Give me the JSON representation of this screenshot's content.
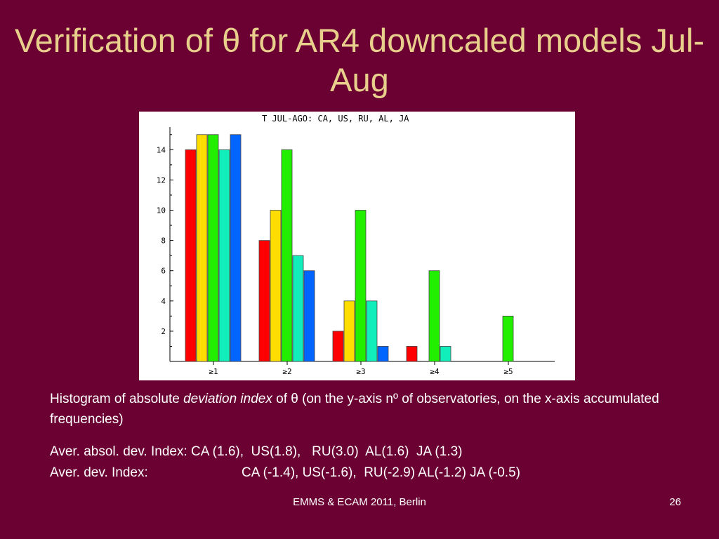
{
  "slide": {
    "title": "Verification of θ for AR4 downcaled models Jul-Aug",
    "caption": {
      "part1": "Histogram of absolute ",
      "italic": "deviation index",
      "part2": " of θ (on the y-axis nº of observatories, on the x-axis accumulated frequencies)"
    },
    "stats": {
      "abs_label": "Aver. absol. dev. Index: ",
      "abs_values": "CA (1.6),  US(1.8),   RU(3.0)  AL(1.6)  JA (1.3)",
      "dev_label": "Aver. dev. Index:",
      "dev_values": "CA (-1.4), US(-1.6),  RU(-2.9) AL(-1.2) JA (-0.5)"
    },
    "footer": "EMMS & ECAM 2011, Berlin",
    "page_number": "26"
  },
  "chart_data": {
    "type": "bar",
    "title": "T JUL-AGO: CA, US, RU, AL, JA",
    "categories": [
      "≥1",
      "≥2",
      "≥3",
      "≥4",
      "≥5"
    ],
    "series": [
      {
        "name": "CA",
        "color": "#ff0000",
        "values": [
          14,
          8,
          2,
          1,
          0
        ]
      },
      {
        "name": "US",
        "color": "#ffdd00",
        "values": [
          15,
          10,
          4,
          0,
          0
        ]
      },
      {
        "name": "RU",
        "color": "#22ee00",
        "values": [
          15,
          14,
          10,
          6,
          3
        ]
      },
      {
        "name": "AL",
        "color": "#11eebb",
        "values": [
          14,
          7,
          4,
          1,
          0
        ]
      },
      {
        "name": "JA",
        "color": "#0066ff",
        "values": [
          15,
          6,
          1,
          0,
          0
        ]
      }
    ],
    "yticks": [
      2,
      4,
      6,
      8,
      10,
      12,
      14
    ],
    "ylim": [
      0,
      15.5
    ],
    "grid": false,
    "legend": "none"
  }
}
